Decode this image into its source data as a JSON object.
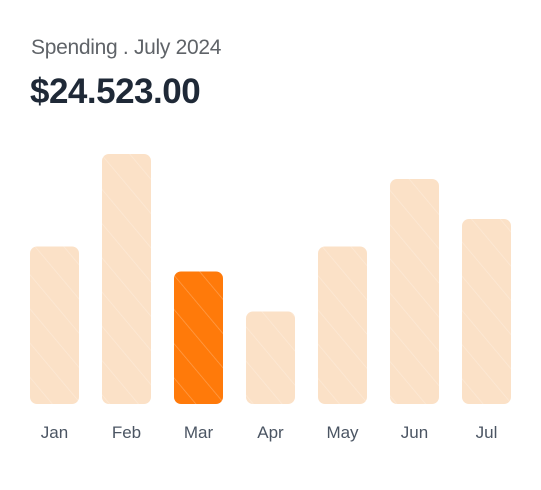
{
  "header": {
    "subtitle": "Spending . July 2024",
    "total": "$24.523.00"
  },
  "colors": {
    "bar": "#fbe1c7",
    "bar_highlight": "#ff7a0a",
    "label": "#4b5563"
  },
  "chart_data": {
    "type": "bar",
    "title": "Spending . July 2024",
    "categories": [
      "Jan",
      "Feb",
      "Mar",
      "Apr",
      "May",
      "Jun",
      "Jul"
    ],
    "values": [
      63,
      100,
      53,
      37,
      63,
      90,
      74
    ],
    "highlight": "Mar",
    "ylim": [
      0,
      100
    ],
    "grid": false,
    "legend": false
  }
}
